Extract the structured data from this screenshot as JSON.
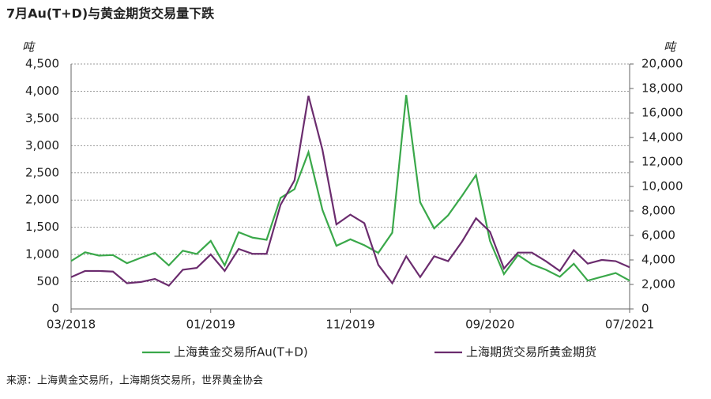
{
  "chart_data": {
    "type": "line",
    "title": "7月Au(T+D)与黄金期货交易量下跌",
    "y_label": "吨",
    "y2_label": "吨",
    "source": "来源：上海黄金交易所，上海期货交易所，世界黄金协会",
    "categories": [
      "03/2018",
      null,
      null,
      null,
      null,
      null,
      null,
      null,
      null,
      null,
      "01/2019",
      null,
      null,
      null,
      null,
      null,
      null,
      null,
      null,
      null,
      "11/2019",
      null,
      null,
      null,
      null,
      null,
      null,
      null,
      null,
      null,
      "09/2020",
      null,
      null,
      null,
      null,
      null,
      null,
      null,
      null,
      null,
      "07/2021"
    ],
    "series": [
      {
        "name": "上海黄金交易所Au(T+D)",
        "color": "#3aa84a",
        "axis": "y",
        "values": [
          880,
          1040,
          980,
          990,
          840,
          940,
          1030,
          800,
          1070,
          1010,
          1250,
          800,
          1410,
          1310,
          1270,
          2040,
          2200,
          2880,
          1820,
          1160,
          1280,
          1170,
          1030,
          1400,
          3930,
          1960,
          1480,
          1720,
          2080,
          2460,
          1250,
          640,
          990,
          820,
          720,
          590,
          830,
          520,
          590,
          660,
          520
        ]
      },
      {
        "name": "上海期货交易所黄金期货",
        "color": "#6b2c6e",
        "axis": "y2",
        "values": [
          2600,
          3100,
          3100,
          3050,
          2100,
          2200,
          2450,
          1900,
          3200,
          3350,
          4450,
          3100,
          4900,
          4500,
          4500,
          8500,
          10500,
          17400,
          13000,
          6900,
          7700,
          7000,
          3600,
          2100,
          4300,
          2600,
          4300,
          3900,
          5500,
          7400,
          6300,
          3300,
          4600,
          4600,
          3900,
          3100,
          4800,
          3700,
          4000,
          3900,
          3400
        ]
      }
    ],
    "ylim": [
      0,
      4500
    ],
    "yticks": [
      0,
      500,
      {
        "value": 1000,
        "label": "1,000"
      },
      {
        "value": 1500,
        "label": "1,500"
      },
      {
        "value": 2000,
        "label": "2,000"
      },
      {
        "value": 2500,
        "label": "2,500"
      },
      {
        "value": 3000,
        "label": "3,000"
      },
      {
        "value": 3500,
        "label": "3,500"
      },
      {
        "value": 4000,
        "label": "4,000"
      },
      {
        "value": 4500,
        "label": "4,500"
      }
    ],
    "y2lim": [
      0,
      20000
    ],
    "y2ticks": [
      0,
      {
        "value": 2000,
        "label": "2,000"
      },
      {
        "value": 4000,
        "label": "4,000"
      },
      {
        "value": 6000,
        "label": "6,000"
      },
      {
        "value": 8000,
        "label": "8,000"
      },
      {
        "value": 10000,
        "label": "10,000"
      },
      {
        "value": 12000,
        "label": "12,000"
      },
      {
        "value": 14000,
        "label": "14,000"
      },
      {
        "value": 16000,
        "label": "16,000"
      },
      {
        "value": 18000,
        "label": "18,000"
      },
      {
        "value": 20000,
        "label": "20,000"
      }
    ],
    "grid": true,
    "legend": "bottom"
  }
}
